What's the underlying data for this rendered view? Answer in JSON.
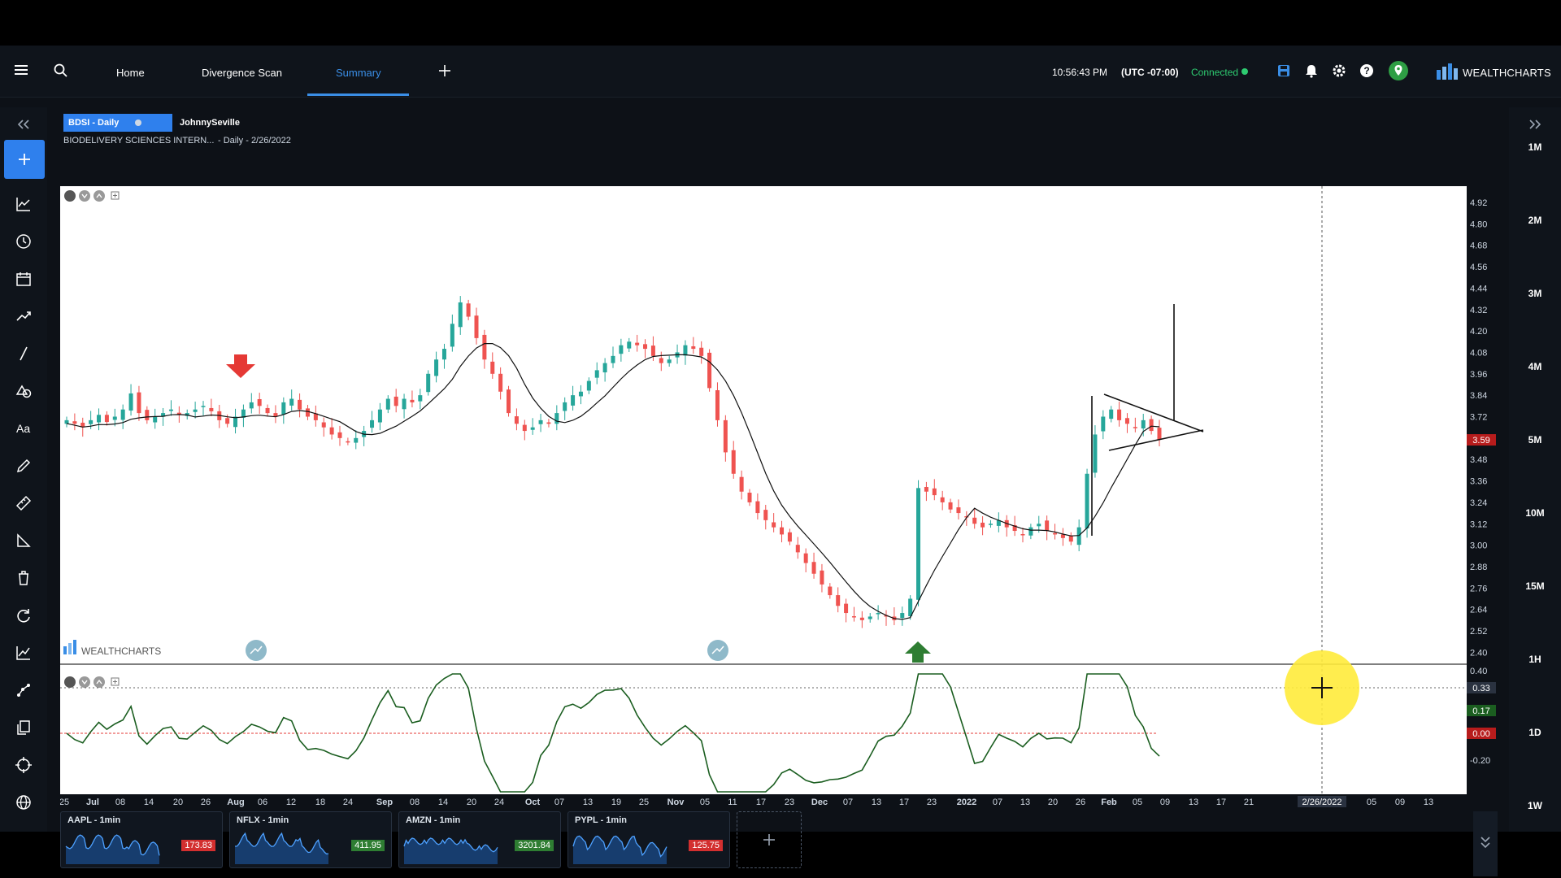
{
  "nav": {
    "home": "Home",
    "divergence_scan": "Divergence Scan",
    "summary": "Summary",
    "time": "10:56:43 PM",
    "timezone": "(UTC -07:00)",
    "status": "Connected",
    "brand": "WEALTHCHARTS",
    "colors": {
      "accent": "#3a8ee6",
      "connected": "#2ecc71"
    }
  },
  "chart_header": {
    "symbol_tab": "BDSI - Daily",
    "user_tab": "JohnnySeville",
    "full_name": "BIODELIVERY SCIENCES INTERN...",
    "subtitle": " - Daily - 2/26/2022"
  },
  "timeframes": [
    "1M",
    "2M",
    "3M",
    "4M",
    "5M",
    "10M",
    "15M",
    "1H",
    "1D",
    "1W"
  ],
  "chart_data": {
    "type": "candlestick",
    "price_axis": [
      "4.92",
      "4.80",
      "4.68",
      "4.56",
      "4.44",
      "4.32",
      "4.20",
      "4.08",
      "3.96",
      "3.84",
      "3.72",
      "3.59",
      "3.48",
      "3.36",
      "3.24",
      "3.12",
      "3.00",
      "2.88",
      "2.76",
      "2.64",
      "2.52",
      "2.40"
    ],
    "last_price": "3.59",
    "indicator_axis": [
      "0.40",
      "0.33",
      "0.17",
      "0.00",
      "-0.20"
    ],
    "indicator_current": "0.17",
    "indicator_zero": "0.00",
    "crosshair_value": "0.33",
    "x_ticks": [
      "25",
      "Jul",
      "08",
      "14",
      "20",
      "26",
      "Aug",
      "06",
      "12",
      "18",
      "24",
      "Sep",
      "08",
      "14",
      "20",
      "24",
      "Oct",
      "07",
      "13",
      "19",
      "25",
      "Nov",
      "05",
      "11",
      "17",
      "23",
      "Dec",
      "07",
      "13",
      "17",
      "23",
      "2022",
      "07",
      "13",
      "20",
      "26",
      "Feb",
      "05",
      "09",
      "13",
      "17",
      "21",
      "2/26/2022",
      "05",
      "09",
      "13"
    ],
    "crosshair_date": "2/26/2022",
    "watermark": "WEALTHCHARTS",
    "close_series": [
      3.7,
      3.68,
      3.66,
      3.7,
      3.73,
      3.69,
      3.72,
      3.76,
      3.85,
      3.74,
      3.7,
      3.72,
      3.74,
      3.76,
      3.73,
      3.74,
      3.76,
      3.78,
      3.75,
      3.7,
      3.68,
      3.72,
      3.76,
      3.8,
      3.78,
      3.74,
      3.72,
      3.8,
      3.82,
      3.76,
      3.72,
      3.7,
      3.66,
      3.62,
      3.6,
      3.58,
      3.6,
      3.64,
      3.7,
      3.76,
      3.82,
      3.78,
      3.82,
      3.8,
      3.84,
      3.96,
      4.04,
      4.1,
      4.24,
      4.36,
      4.28,
      4.16,
      4.04,
      3.96,
      3.86,
      3.74,
      3.68,
      3.64,
      3.66,
      3.7,
      3.68,
      3.74,
      3.8,
      3.84,
      3.86,
      3.92,
      3.98,
      4.02,
      4.06,
      4.12,
      4.14,
      4.12,
      4.1,
      4.06,
      4.02,
      4.04,
      4.08,
      4.12,
      4.1,
      4.06,
      3.88,
      3.7,
      3.52,
      3.4,
      3.3,
      3.24,
      3.18,
      3.14,
      3.1,
      3.06,
      3.02,
      2.96,
      2.9,
      2.84,
      2.78,
      2.72,
      2.66,
      2.62,
      2.6,
      2.58,
      2.6,
      2.62,
      2.6,
      2.58,
      2.62,
      2.7,
      3.32,
      3.3,
      3.28,
      3.24,
      3.2,
      3.18,
      3.16,
      3.12,
      3.1,
      3.12,
      3.14,
      3.1,
      3.08,
      3.06,
      3.1,
      3.12,
      3.08,
      3.06,
      3.04,
      3.02,
      3.1,
      3.4,
      3.62,
      3.72,
      3.76,
      3.7,
      3.68,
      3.66,
      3.7,
      3.64,
      3.59
    ],
    "down_arrow_label": "sell",
    "up_arrow_label": "buy",
    "colors": {
      "up": "#26a69a",
      "down": "#ef5350",
      "ma": "#111111",
      "indicator": "#1b5e20",
      "zero": "#e53935",
      "crosshair_marker": "#ffeb3b"
    }
  },
  "mini_charts": [
    {
      "label": "AAPL - 1min",
      "price": "173.83",
      "color": "#d32f2f"
    },
    {
      "label": "NFLX - 1min",
      "price": "411.95",
      "color": "#2e7d32"
    },
    {
      "label": "AMZN - 1min",
      "price": "3201.84",
      "color": "#2e7d32"
    },
    {
      "label": "PYPL - 1min",
      "price": "125.75",
      "color": "#d32f2f"
    }
  ]
}
